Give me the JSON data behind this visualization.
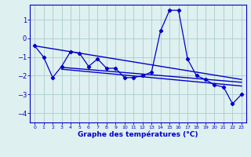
{
  "x": [
    0,
    1,
    2,
    3,
    4,
    5,
    6,
    7,
    8,
    9,
    10,
    11,
    12,
    13,
    14,
    15,
    16,
    17,
    18,
    19,
    20,
    21,
    22,
    23
  ],
  "y_main": [
    -0.4,
    -1.0,
    -2.1,
    -1.5,
    -0.7,
    -0.8,
    -1.5,
    -1.1,
    -1.6,
    -1.6,
    -2.1,
    -2.1,
    -2.0,
    -1.8,
    0.4,
    1.5,
    1.5,
    -1.1,
    -2.0,
    -2.2,
    -2.5,
    -2.6,
    -3.5,
    -3.0
  ],
  "trend1_x": [
    0,
    23
  ],
  "trend1_y": [
    -0.4,
    -2.2
  ],
  "trend2_x": [
    3,
    23
  ],
  "trend2_y": [
    -1.55,
    -2.35
  ],
  "trend3_x": [
    3,
    23
  ],
  "trend3_y": [
    -1.65,
    -2.55
  ],
  "bg_color": "#dff0f0",
  "line_color": "#0000cc",
  "grid_color": "#aacccc",
  "xlabel": "Graphe des températures (°C)",
  "xlim": [
    -0.5,
    23.5
  ],
  "ylim": [
    -4.5,
    1.8
  ],
  "yticks": [
    -4,
    -3,
    -2,
    -1,
    0,
    1
  ],
  "xticks": [
    0,
    1,
    2,
    3,
    4,
    5,
    6,
    7,
    8,
    9,
    10,
    11,
    12,
    13,
    14,
    15,
    16,
    17,
    18,
    19,
    20,
    21,
    22,
    23
  ]
}
